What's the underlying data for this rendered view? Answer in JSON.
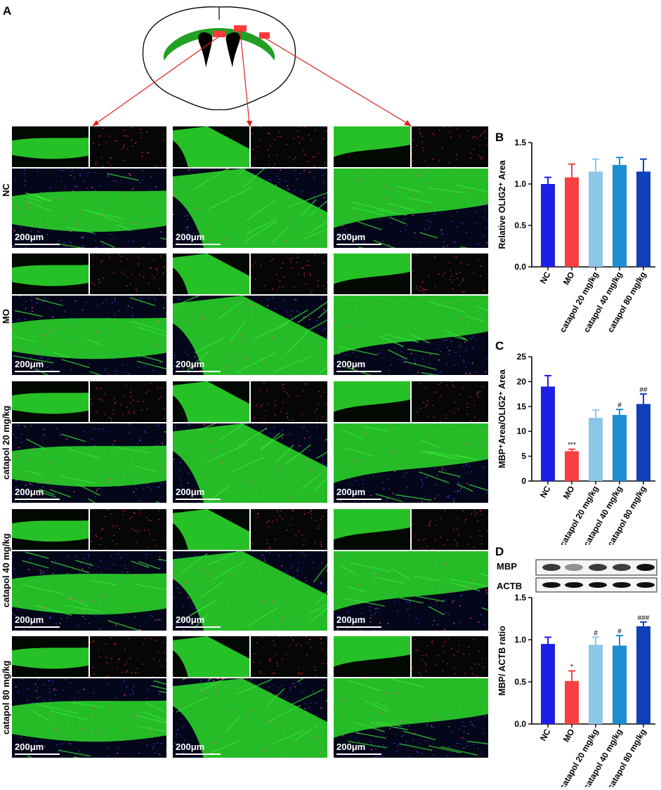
{
  "panels": {
    "a": "A",
    "b": "B",
    "c": "C",
    "d": "D"
  },
  "scale_bar": "200μm",
  "row_labels": [
    "NC",
    "MO",
    "catapol 20 mg/kg",
    "catapol 40 mg/kg",
    "catapol 80 mg/kg"
  ],
  "colors": {
    "NC": "#1e1ee6",
    "MO": "#f74040",
    "catapol 20 mg/kg": "#8ec6e8",
    "catapol 40 mg/kg": "#1d8ed0",
    "catapol 80 mg/kg": "#1040b8",
    "tissue_green": "#2ad62a",
    "tract_green": "#22a022",
    "highlight_red": "#ff3a3a",
    "arrow_red": "#e02020"
  },
  "blot": {
    "labels": [
      "MBP",
      "ACTB"
    ]
  },
  "chart_data": [
    {
      "panel": "B",
      "type": "bar",
      "categories": [
        "NC",
        "MO",
        "catapol 20 mg/kg",
        "catapol 40 mg/kg",
        "catapol 80 mg/kg"
      ],
      "values": [
        1.0,
        1.08,
        1.15,
        1.23,
        1.15
      ],
      "errors": [
        0.08,
        0.16,
        0.15,
        0.09,
        0.15
      ],
      "annotations": [
        "",
        "",
        "",
        "",
        ""
      ],
      "ylabel": "Relative OLIG2⁺ Area",
      "ylim": [
        0,
        1.5
      ],
      "yticks": [
        0.0,
        0.5,
        1.0,
        1.5
      ],
      "ytick_labels": [
        "0.0",
        "0.5",
        "1.0",
        "1.5"
      ],
      "grid": false
    },
    {
      "panel": "C",
      "type": "bar",
      "categories": [
        "NC",
        "MO",
        "catapol 20 mg/kg",
        "catapol 40 mg/kg",
        "catapol 80 mg/kg"
      ],
      "values": [
        19.0,
        6.0,
        12.7,
        13.3,
        15.5
      ],
      "errors": [
        2.2,
        0.4,
        1.6,
        1.1,
        2.0
      ],
      "annotations": [
        "",
        "***",
        "",
        "#",
        "##"
      ],
      "ylabel": "MBP⁺Area/OLIG2⁺ Area",
      "ylim": [
        0,
        25
      ],
      "yticks": [
        0,
        5,
        10,
        15,
        20,
        25
      ],
      "ytick_labels": [
        "0",
        "5",
        "10",
        "15",
        "20",
        "25"
      ],
      "grid": false
    },
    {
      "panel": "D",
      "type": "bar",
      "categories": [
        "NC",
        "MO",
        "catapol 20 mg/kg",
        "catapol 40 mg/kg",
        "catapol 80 mg/kg"
      ],
      "values": [
        0.95,
        0.51,
        0.94,
        0.93,
        1.16
      ],
      "errors": [
        0.08,
        0.12,
        0.09,
        0.12,
        0.05
      ],
      "annotations": [
        "",
        "*",
        "#",
        "#",
        "###"
      ],
      "ylabel": "MBP/ ACTB ratio",
      "ylim": [
        0,
        1.5
      ],
      "yticks": [
        0.0,
        0.5,
        1.0,
        1.5
      ],
      "ytick_labels": [
        "0.0",
        "0.5",
        "1.0",
        "1.5"
      ],
      "grid": false
    }
  ]
}
